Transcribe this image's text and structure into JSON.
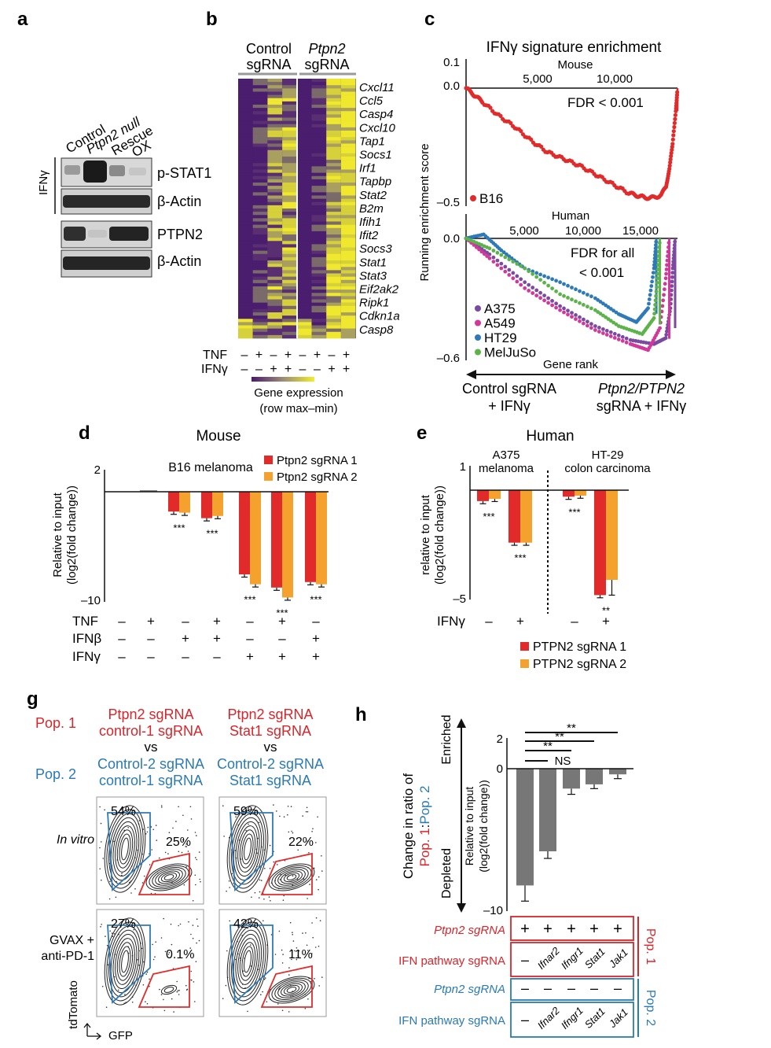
{
  "colors": {
    "red": "#e12b2b",
    "orange": "#f4a12d",
    "blue": "#2e7ab8",
    "grey": "#777777",
    "purple": "#7b4aa0",
    "magenta": "#d0399a",
    "green": "#5cb34a",
    "text_red": "#d9252a",
    "text_blue": "#2a7ab5"
  },
  "panel_a": {
    "letter": "a",
    "columns": [
      "Control",
      "Ptpn2 null",
      "Rescue",
      "OX"
    ],
    "treatment": "IFNγ",
    "rows": [
      "p-STAT1",
      "β-Actin",
      "PTPN2",
      "β-Actin"
    ]
  },
  "panel_b": {
    "letter": "b",
    "group1_line1": "Control",
    "group1_line2": "sgRNA",
    "group2_line1": "Ptpn2",
    "group2_line2": "sgRNA",
    "genes": [
      "Cxcl11",
      "Ccl5",
      "Casp4",
      "Cxcl10",
      "Tap1",
      "Socs1",
      "Irf1",
      "Tapbp",
      "Stat2",
      "B2m",
      "Ifih1",
      "Ifit2",
      "Socs3",
      "Stat1",
      "Stat3",
      "Eif2ak2",
      "Ripk1",
      "Cdkn1a",
      "Casp8"
    ],
    "tnf_label": "TNF",
    "ifng_label": "IFNγ",
    "tnf_row": [
      "–",
      "+",
      "–",
      "+",
      "–",
      "+",
      "–",
      "+"
    ],
    "ifng_row": [
      "–",
      "–",
      "+",
      "+",
      "–",
      "–",
      "+",
      "+"
    ],
    "legend_title": "Gene expression",
    "legend_sub": "(row max–min)"
  },
  "panel_c": {
    "letter": "c",
    "title": "IFNγ signature enrichment",
    "ylabel": "Running enrichment score",
    "mouse_axis_label": "Mouse",
    "mouse_ticks": [
      "5,000",
      "10,000"
    ],
    "mouse_y": [
      "0.1",
      "0.0",
      "–0.5"
    ],
    "mouse_fdr": "FDR < 0.001",
    "mouse_series": "B16",
    "human_axis_label": "Human",
    "human_ticks": [
      "5,000",
      "10,000",
      "15,000"
    ],
    "human_y": [
      "0.0",
      "–0.6"
    ],
    "human_fdr_line1": "FDR for all",
    "human_fdr_line2": "< 0.001",
    "human_series": [
      "A375",
      "A549",
      "HT29",
      "MelJuSo"
    ],
    "gene_rank": "Gene rank",
    "left_label_1": "Control sgRNA",
    "left_label_2": "+ IFNγ",
    "right_label_1": "Ptpn2/PTPN2",
    "right_label_2": "sgRNA + IFNγ"
  },
  "panel_d": {
    "letter": "d",
    "title": "Mouse",
    "subtitle": "B16 melanoma",
    "ylabel_1": "Relative to input",
    "ylabel_2": "(log2(fold change))",
    "y_ticks": [
      "2",
      "–10"
    ],
    "legend": [
      "Ptpn2 sgRNA 1",
      "Ptpn2 sgRNA 2"
    ],
    "row_labels": [
      "TNF",
      "IFNβ",
      "IFNγ"
    ],
    "tnf": [
      "–",
      "+",
      "–",
      "+",
      "–",
      "+",
      "–"
    ],
    "ifnb": [
      "–",
      "–",
      "+",
      "+",
      "–",
      "–",
      "+"
    ],
    "ifng": [
      "–",
      "–",
      "–",
      "–",
      "+",
      "+",
      "+"
    ],
    "stars": [
      "",
      "",
      "***",
      "***",
      "***",
      "***",
      "***"
    ]
  },
  "panel_e": {
    "letter": "e",
    "title": "Human",
    "group1_line1": "A375",
    "group1_line2": "melanoma",
    "group2_line1": "HT-29",
    "group2_line2": "colon carcinoma",
    "ylabel_1": "relative to input",
    "ylabel_2": "(log2(fold change))",
    "y_ticks": [
      "1",
      "–5"
    ],
    "row_label": "IFNγ",
    "ifng": [
      "–",
      "+",
      "–",
      "+"
    ],
    "stars": [
      "***",
      "***",
      "***",
      "**"
    ],
    "legend": [
      "PTPN2 sgRNA 1",
      "PTPN2 sgRNA 2"
    ]
  },
  "panel_g": {
    "letter": "g",
    "pop1": "Pop. 1",
    "pop2": "Pop. 2",
    "col1_pop1_line1": "Ptpn2 sgRNA",
    "col1_pop1_line2": "control-1 sgRNA",
    "col2_pop1_line1": "Ptpn2 sgRNA",
    "col2_pop1_line2": "Stat1 sgRNA",
    "vs": "vs",
    "col1_pop2_line1": "Control-2 sgRNA",
    "col1_pop2_line2": "control-1 sgRNA",
    "col2_pop2_line1": "Control-2 sgRNA",
    "col2_pop2_line2": "Stat1 sgRNA",
    "row1_label": "In vitro",
    "row2_label_1": "GVAX +",
    "row2_label_2": "anti-PD-1",
    "percents": [
      "54%",
      "25%",
      "59%",
      "22%",
      "27%",
      "0.1%",
      "42%",
      "11%"
    ],
    "yaxis": "tdTomato",
    "xaxis": "GFP"
  },
  "panel_h": {
    "letter": "h",
    "ylabel_outer_1": "Change in ratio of",
    "ylabel_pop1": "Pop. 1",
    "ylabel_colon": ":",
    "ylabel_pop2": "Pop. 2",
    "ylabel_inner_1": "Relative to input",
    "ylabel_inner_2": "(log2(fold change))",
    "enriched": "Enriched",
    "depleted": "Depleted",
    "y_ticks": [
      "2",
      "0",
      "–10"
    ],
    "sig": [
      "**",
      "**",
      "**",
      "NS"
    ],
    "row1_label": "Ptpn2 sgRNA",
    "row1_vals": [
      "+",
      "+",
      "+",
      "+",
      "+"
    ],
    "row2_label": "IFN pathway sgRNA",
    "row2_vals": [
      "–",
      "Ifnar2",
      "Ifngr1",
      "Stat1",
      "Jak1"
    ],
    "row3_label": "Ptpn2 sgRNA",
    "row3_vals": [
      "–",
      "–",
      "–",
      "–",
      "–"
    ],
    "row4_label": "IFN pathway sgRNA",
    "row4_vals": [
      "–",
      "Ifnar2",
      "Ifngr1",
      "Stat1",
      "Jak1"
    ],
    "pop1": "Pop. 1",
    "pop2": "Pop. 2"
  },
  "chart_data": [
    {
      "type": "line",
      "title": "IFNγ signature enrichment (Mouse)",
      "xlabel": "Gene rank",
      "ylabel": "Running enrichment score",
      "xlim": [
        0,
        13000
      ],
      "ylim": [
        -0.55,
        0.1
      ],
      "series": [
        {
          "name": "B16",
          "x": [
            0,
            500,
            1000,
            2000,
            3000,
            4000,
            5000,
            6000,
            7000,
            8000,
            9000,
            10000,
            10500,
            11000,
            11500,
            12000,
            12300,
            12500,
            12700,
            12900,
            13000
          ],
          "y": [
            0,
            -0.03,
            -0.06,
            -0.12,
            -0.17,
            -0.23,
            -0.28,
            -0.31,
            -0.34,
            -0.38,
            -0.42,
            -0.46,
            -0.47,
            -0.48,
            -0.48,
            -0.47,
            -0.43,
            -0.35,
            -0.25,
            -0.1,
            0
          ]
        }
      ]
    },
    {
      "type": "line",
      "title": "IFNγ signature enrichment (Human)",
      "xlabel": "Gene rank",
      "ylabel": "Running enrichment score",
      "xlim": [
        0,
        18000
      ],
      "ylim": [
        -0.6,
        0.05
      ],
      "series": [
        {
          "name": "A375",
          "x": [
            0,
            2000,
            5000,
            8000,
            11000,
            14000,
            16000,
            17000,
            17400,
            17600,
            17800
          ],
          "y": [
            0,
            -0.08,
            -0.22,
            -0.34,
            -0.44,
            -0.51,
            -0.53,
            -0.5,
            -0.35,
            -0.15,
            0
          ]
        },
        {
          "name": "A549",
          "x": [
            0,
            2000,
            5000,
            8000,
            11000,
            14000,
            15500,
            16500,
            17000,
            17300
          ],
          "y": [
            0,
            -0.1,
            -0.25,
            -0.36,
            -0.46,
            -0.53,
            -0.56,
            -0.45,
            -0.2,
            0
          ]
        },
        {
          "name": "HT29",
          "x": [
            0,
            1500,
            3000,
            5000,
            8000,
            11000,
            13000,
            14500,
            15500,
            16000,
            16200
          ],
          "y": [
            0,
            0.02,
            -0.06,
            -0.15,
            -0.22,
            -0.3,
            -0.38,
            -0.42,
            -0.35,
            -0.15,
            0
          ]
        },
        {
          "name": "MelJuSo",
          "x": [
            0,
            2000,
            5000,
            8000,
            11000,
            13000,
            15000,
            16000,
            16300,
            16500
          ],
          "y": [
            0,
            -0.05,
            -0.15,
            -0.28,
            -0.36,
            -0.44,
            -0.48,
            -0.4,
            -0.2,
            0
          ]
        }
      ]
    },
    {
      "type": "bar",
      "title": "Mouse B16 melanoma",
      "ylabel": "Relative to input (log2(fold change))",
      "ylim": [
        -10,
        2
      ],
      "categories": [
        "TNF",
        "IFNβ",
        "IFNβ+TNF",
        "IFNγ",
        "IFNγ+TNF",
        "IFNγ+IFNβ"
      ],
      "series": [
        {
          "name": "Ptpn2 sgRNA 1",
          "values": [
            -0.1,
            -1.8,
            -2.4,
            -7.5,
            -8.7,
            -8.2
          ]
        },
        {
          "name": "Ptpn2 sgRNA 2",
          "values": [
            -0.1,
            -1.9,
            -2.2,
            -8.4,
            -9.6,
            -8.4
          ]
        }
      ]
    },
    {
      "type": "bar",
      "title": "Human",
      "ylabel": "relative to input (log2(fold change))",
      "ylim": [
        -5,
        1
      ],
      "categories": [
        "A375 –",
        "A375 +",
        "HT-29 –",
        "HT-29 +"
      ],
      "series": [
        {
          "name": "PTPN2 sgRNA 1",
          "values": [
            -0.5,
            -2.4,
            -0.3,
            -4.8
          ]
        },
        {
          "name": "PTPN2 sgRNA 2",
          "values": [
            -0.4,
            -2.4,
            -0.25,
            -4.1
          ]
        }
      ]
    },
    {
      "type": "bar",
      "title": "Change in ratio of Pop. 1:Pop. 2",
      "ylabel": "Relative to input (log2(fold change))",
      "ylim": [
        -10,
        2
      ],
      "categories": [
        "–",
        "Ifnar2",
        "Ifngr1",
        "Stat1",
        "Jak1"
      ],
      "values": [
        -8.2,
        -5.8,
        -1.4,
        -1.1,
        -0.4
      ]
    }
  ]
}
